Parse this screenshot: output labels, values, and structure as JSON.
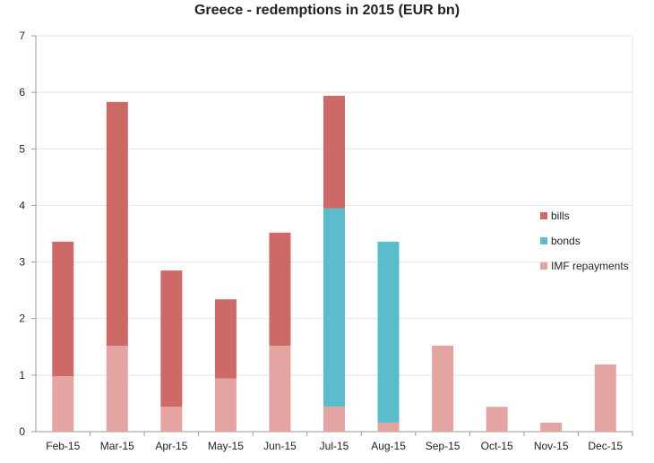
{
  "chart_data": {
    "type": "bar",
    "stacked": true,
    "title": "Greece - redemptions in 2015 (EUR bn)",
    "xlabel": "",
    "ylabel": "",
    "ylim": [
      0,
      7
    ],
    "yticks": [
      "0",
      "1",
      "2",
      "3",
      "4",
      "5",
      "6",
      "7"
    ],
    "grid": true,
    "legend_position": "right",
    "categories": [
      "Feb-15",
      "Mar-15",
      "Apr-15",
      "May-15",
      "Jun-15",
      "Jul-15",
      "Aug-15",
      "Sep-15",
      "Oct-15",
      "Nov-15",
      "Dec-15"
    ],
    "series": [
      {
        "name": "IMF repayments",
        "color": "#e4a4a2",
        "values": [
          0.98,
          1.52,
          0.44,
          0.94,
          1.52,
          0.44,
          0.16,
          1.52,
          0.44,
          0.16,
          1.19
        ]
      },
      {
        "name": "bonds",
        "color": "#5bbccc",
        "values": [
          0,
          0,
          0,
          0,
          0,
          3.51,
          3.2,
          0,
          0,
          0,
          0
        ]
      },
      {
        "name": "bills",
        "color": "#cd6a67",
        "values": [
          2.38,
          4.31,
          2.41,
          1.4,
          2.0,
          1.99,
          0,
          0,
          0,
          0,
          0
        ]
      }
    ],
    "legend_order": [
      "bills",
      "bonds",
      "IMF repayments"
    ]
  }
}
